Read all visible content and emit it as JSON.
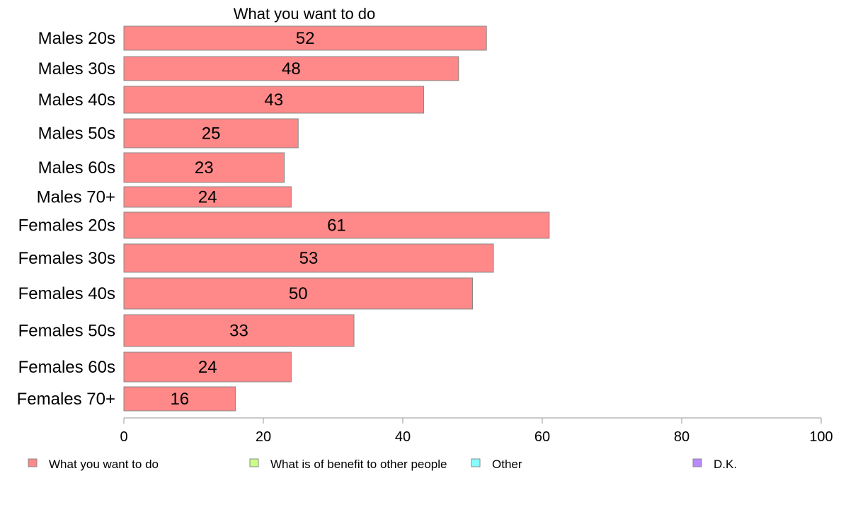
{
  "chart_data": {
    "type": "bar",
    "orientation": "horizontal",
    "title": "What you want to do",
    "xlabel": "",
    "ylabel": "",
    "xlim": [
      0,
      100
    ],
    "x_ticks": [
      0,
      20,
      40,
      60,
      80,
      100
    ],
    "grid": false,
    "legend_position": "bottom",
    "categories": [
      "Males 20s",
      "Males 30s",
      "Males 40s",
      "Males 50s",
      "Males 60s",
      "Males 70+",
      "Females 20s",
      "Females 30s",
      "Females 40s",
      "Females 50s",
      "Females 60s",
      "Females 70+"
    ],
    "series": [
      {
        "name": "What you want to do",
        "color": "#ff8888",
        "values": [
          52,
          48,
          43,
          25,
          23,
          24,
          61,
          53,
          50,
          33,
          24,
          16
        ]
      }
    ],
    "legend": [
      {
        "label": "What you want to do",
        "color": "#ff8888"
      },
      {
        "label": "What is of benefit to other people",
        "color": "#ccff88"
      },
      {
        "label": "Other",
        "color": "#88ffff"
      },
      {
        "label": "D.K.",
        "color": "#bb88ff"
      }
    ]
  }
}
